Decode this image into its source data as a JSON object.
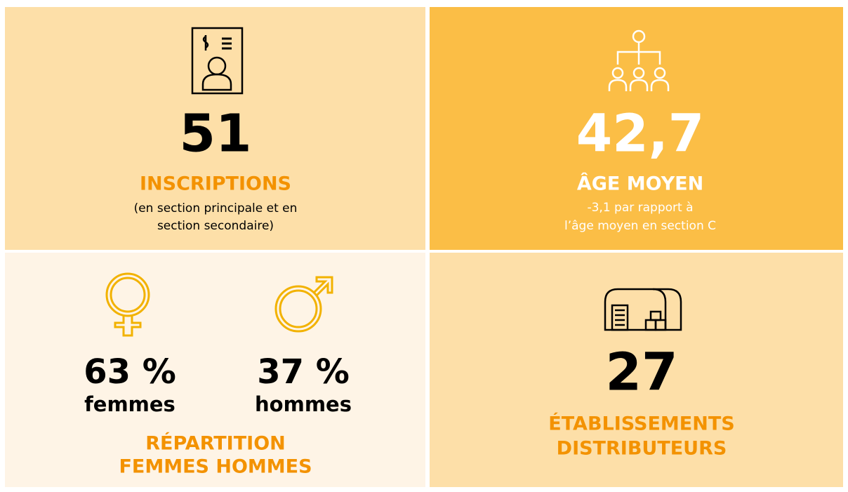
{
  "panels": [
    {
      "value": "51",
      "label": "INSCRIPTIONS",
      "note": [
        "(en section principale et en",
        "section secondaire)"
      ]
    },
    {
      "value": "42,7",
      "label": "ÂGE MOYEN",
      "note": [
        "-3,1 par rapport à",
        "l’âge moyen en section C"
      ]
    },
    {
      "items": [
        {
          "value": "63 %",
          "label": "femmes"
        },
        {
          "value": "37 %",
          "label": "hommes"
        }
      ],
      "label": [
        "RÉPARTITION",
        "FEMMES HOMMES"
      ]
    },
    {
      "value": "27",
      "label": [
        "ÉTABLISSEMENTS",
        "DISTRIBUTEURS"
      ]
    }
  ]
}
